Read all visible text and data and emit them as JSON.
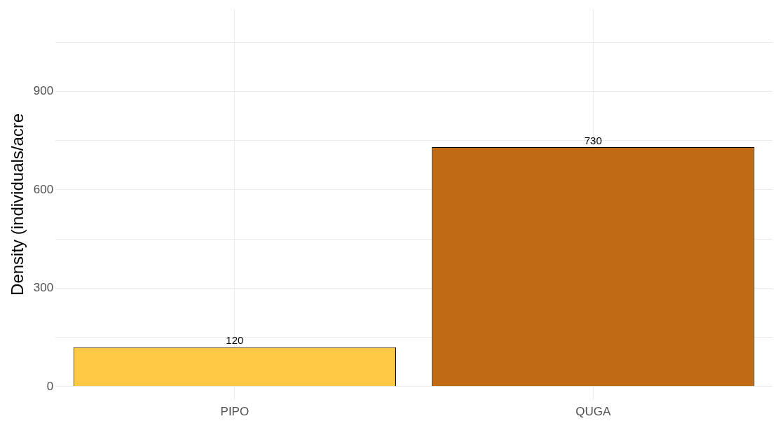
{
  "chart_data": {
    "type": "bar",
    "ylabel": "Density (individuals/acre",
    "categories": [
      "PIPO",
      "QUGA"
    ],
    "values": [
      120,
      730
    ],
    "colors": [
      "#ffc845",
      "#c06a14"
    ],
    "ylim": [
      -40,
      1150
    ],
    "yticks": [
      0,
      {
        "value": 150,
        "label": null
      },
      300,
      {
        "value": 450,
        "label": null
      },
      600,
      {
        "value": 750,
        "label": null
      },
      900,
      {
        "value": 1050,
        "label": null
      }
    ],
    "grid": true,
    "data_labels": true
  }
}
